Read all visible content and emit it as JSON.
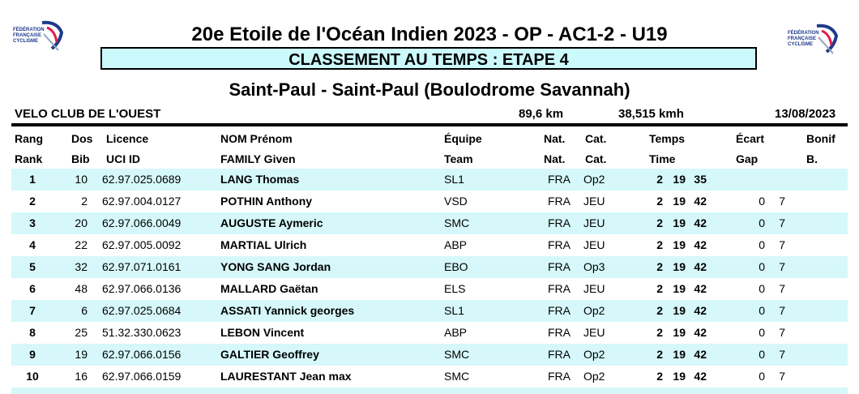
{
  "header": {
    "title": "20e Etoile de l'Océan Indien 2023 - OP - AC1-2 - U19",
    "subtitle": "CLASSEMENT AU TEMPS : ETAPE 4",
    "location": "Saint-Paul - Saint-Paul (Boulodrome Savannah)",
    "club": "VELO CLUB DE L'OUEST",
    "distance": "89,6 km",
    "speed": "38,515 kmh",
    "date": "13/08/2023"
  },
  "columns": {
    "fr": {
      "rank": "Rang",
      "bib": "Dos",
      "licence": "Licence",
      "name": "NOM Prénom",
      "team": "Équipe",
      "nat": "Nat.",
      "cat": "Cat.",
      "time": "Temps",
      "gap": "Écart",
      "bonus": "Bonif"
    },
    "en": {
      "rank": "Rank",
      "bib": "Bib",
      "licence": "UCI ID",
      "name": "FAMILY Given",
      "team": "Team",
      "nat": "Nat.",
      "cat": "Cat.",
      "time": "Time",
      "gap": "Gap",
      "bonus": "B."
    }
  },
  "rows": [
    {
      "rank": "1",
      "bib": "10",
      "licence": "62.97.025.0689",
      "name": "LANG Thomas",
      "team": "SL1",
      "nat": "FRA",
      "cat": "Op2",
      "h": "2",
      "m": "19",
      "s": "35",
      "gm": "",
      "gs": ""
    },
    {
      "rank": "2",
      "bib": "2",
      "licence": "62.97.004.0127",
      "name": "POTHIN Anthony",
      "team": "VSD",
      "nat": "FRA",
      "cat": "JEU",
      "h": "2",
      "m": "19",
      "s": "42",
      "gm": "0",
      "gs": "7"
    },
    {
      "rank": "3",
      "bib": "20",
      "licence": "62.97.066.0049",
      "name": "AUGUSTE Aymeric",
      "team": "SMC",
      "nat": "FRA",
      "cat": "JEU",
      "h": "2",
      "m": "19",
      "s": "42",
      "gm": "0",
      "gs": "7"
    },
    {
      "rank": "4",
      "bib": "22",
      "licence": "62.97.005.0092",
      "name": "MARTIAL Ulrich",
      "team": "ABP",
      "nat": "FRA",
      "cat": "JEU",
      "h": "2",
      "m": "19",
      "s": "42",
      "gm": "0",
      "gs": "7"
    },
    {
      "rank": "5",
      "bib": "32",
      "licence": "62.97.071.0161",
      "name": "YONG SANG Jordan",
      "team": "EBO",
      "nat": "FRA",
      "cat": "Op3",
      "h": "2",
      "m": "19",
      "s": "42",
      "gm": "0",
      "gs": "7"
    },
    {
      "rank": "6",
      "bib": "48",
      "licence": "62.97.066.0136",
      "name": "MALLARD Gaëtan",
      "team": "ELS",
      "nat": "FRA",
      "cat": "JEU",
      "h": "2",
      "m": "19",
      "s": "42",
      "gm": "0",
      "gs": "7"
    },
    {
      "rank": "7",
      "bib": "6",
      "licence": "62.97.025.0684",
      "name": "ASSATI Yannick georges",
      "team": "SL1",
      "nat": "FRA",
      "cat": "Op2",
      "h": "2",
      "m": "19",
      "s": "42",
      "gm": "0",
      "gs": "7"
    },
    {
      "rank": "8",
      "bib": "25",
      "licence": "51.32.330.0623",
      "name": "LEBON Vincent",
      "team": "ABP",
      "nat": "FRA",
      "cat": "JEU",
      "h": "2",
      "m": "19",
      "s": "42",
      "gm": "0",
      "gs": "7"
    },
    {
      "rank": "9",
      "bib": "19",
      "licence": "62.97.066.0156",
      "name": "GALTIER Geoffrey",
      "team": "SMC",
      "nat": "FRA",
      "cat": "Op2",
      "h": "2",
      "m": "19",
      "s": "42",
      "gm": "0",
      "gs": "7"
    },
    {
      "rank": "10",
      "bib": "16",
      "licence": "62.97.066.0159",
      "name": "LAURESTANT Jean max",
      "team": "SMC",
      "nat": "FRA",
      "cat": "Op2",
      "h": "2",
      "m": "19",
      "s": "42",
      "gm": "0",
      "gs": "7"
    }
  ],
  "logo": {
    "text_lines": [
      "FÉDÉRATION",
      "FRANÇAISE",
      "CYCLISME"
    ],
    "color": "#1e3a8a",
    "accent": "#e11d48"
  }
}
